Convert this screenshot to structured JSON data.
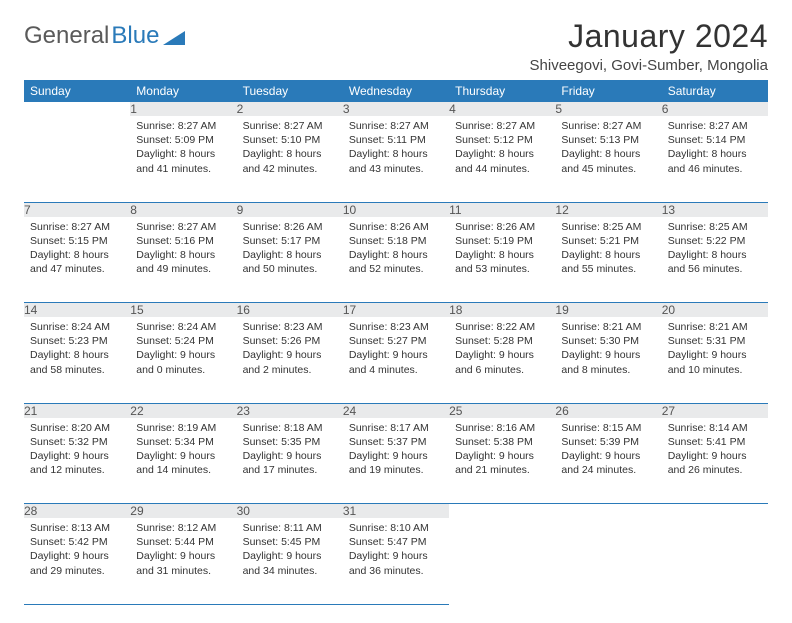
{
  "logo": {
    "text1": "General",
    "text2": "Blue"
  },
  "title": "January 2024",
  "location": "Shiveegovi, Govi-Sumber, Mongolia",
  "headers": [
    "Sunday",
    "Monday",
    "Tuesday",
    "Wednesday",
    "Thursday",
    "Friday",
    "Saturday"
  ],
  "header_bg": "#2a7ab9",
  "header_fg": "#ffffff",
  "daynum_bg": "#e9eaeb",
  "daynum_fg": "#555555",
  "border_color": "#2a7ab9",
  "weeks": [
    {
      "nums": [
        "",
        "1",
        "2",
        "3",
        "4",
        "5",
        "6"
      ],
      "cells": [
        null,
        {
          "sunrise": "Sunrise: 8:27 AM",
          "sunset": "Sunset: 5:09 PM",
          "day1": "Daylight: 8 hours",
          "day2": "and 41 minutes."
        },
        {
          "sunrise": "Sunrise: 8:27 AM",
          "sunset": "Sunset: 5:10 PM",
          "day1": "Daylight: 8 hours",
          "day2": "and 42 minutes."
        },
        {
          "sunrise": "Sunrise: 8:27 AM",
          "sunset": "Sunset: 5:11 PM",
          "day1": "Daylight: 8 hours",
          "day2": "and 43 minutes."
        },
        {
          "sunrise": "Sunrise: 8:27 AM",
          "sunset": "Sunset: 5:12 PM",
          "day1": "Daylight: 8 hours",
          "day2": "and 44 minutes."
        },
        {
          "sunrise": "Sunrise: 8:27 AM",
          "sunset": "Sunset: 5:13 PM",
          "day1": "Daylight: 8 hours",
          "day2": "and 45 minutes."
        },
        {
          "sunrise": "Sunrise: 8:27 AM",
          "sunset": "Sunset: 5:14 PM",
          "day1": "Daylight: 8 hours",
          "day2": "and 46 minutes."
        }
      ]
    },
    {
      "nums": [
        "7",
        "8",
        "9",
        "10",
        "11",
        "12",
        "13"
      ],
      "cells": [
        {
          "sunrise": "Sunrise: 8:27 AM",
          "sunset": "Sunset: 5:15 PM",
          "day1": "Daylight: 8 hours",
          "day2": "and 47 minutes."
        },
        {
          "sunrise": "Sunrise: 8:27 AM",
          "sunset": "Sunset: 5:16 PM",
          "day1": "Daylight: 8 hours",
          "day2": "and 49 minutes."
        },
        {
          "sunrise": "Sunrise: 8:26 AM",
          "sunset": "Sunset: 5:17 PM",
          "day1": "Daylight: 8 hours",
          "day2": "and 50 minutes."
        },
        {
          "sunrise": "Sunrise: 8:26 AM",
          "sunset": "Sunset: 5:18 PM",
          "day1": "Daylight: 8 hours",
          "day2": "and 52 minutes."
        },
        {
          "sunrise": "Sunrise: 8:26 AM",
          "sunset": "Sunset: 5:19 PM",
          "day1": "Daylight: 8 hours",
          "day2": "and 53 minutes."
        },
        {
          "sunrise": "Sunrise: 8:25 AM",
          "sunset": "Sunset: 5:21 PM",
          "day1": "Daylight: 8 hours",
          "day2": "and 55 minutes."
        },
        {
          "sunrise": "Sunrise: 8:25 AM",
          "sunset": "Sunset: 5:22 PM",
          "day1": "Daylight: 8 hours",
          "day2": "and 56 minutes."
        }
      ]
    },
    {
      "nums": [
        "14",
        "15",
        "16",
        "17",
        "18",
        "19",
        "20"
      ],
      "cells": [
        {
          "sunrise": "Sunrise: 8:24 AM",
          "sunset": "Sunset: 5:23 PM",
          "day1": "Daylight: 8 hours",
          "day2": "and 58 minutes."
        },
        {
          "sunrise": "Sunrise: 8:24 AM",
          "sunset": "Sunset: 5:24 PM",
          "day1": "Daylight: 9 hours",
          "day2": "and 0 minutes."
        },
        {
          "sunrise": "Sunrise: 8:23 AM",
          "sunset": "Sunset: 5:26 PM",
          "day1": "Daylight: 9 hours",
          "day2": "and 2 minutes."
        },
        {
          "sunrise": "Sunrise: 8:23 AM",
          "sunset": "Sunset: 5:27 PM",
          "day1": "Daylight: 9 hours",
          "day2": "and 4 minutes."
        },
        {
          "sunrise": "Sunrise: 8:22 AM",
          "sunset": "Sunset: 5:28 PM",
          "day1": "Daylight: 9 hours",
          "day2": "and 6 minutes."
        },
        {
          "sunrise": "Sunrise: 8:21 AM",
          "sunset": "Sunset: 5:30 PM",
          "day1": "Daylight: 9 hours",
          "day2": "and 8 minutes."
        },
        {
          "sunrise": "Sunrise: 8:21 AM",
          "sunset": "Sunset: 5:31 PM",
          "day1": "Daylight: 9 hours",
          "day2": "and 10 minutes."
        }
      ]
    },
    {
      "nums": [
        "21",
        "22",
        "23",
        "24",
        "25",
        "26",
        "27"
      ],
      "cells": [
        {
          "sunrise": "Sunrise: 8:20 AM",
          "sunset": "Sunset: 5:32 PM",
          "day1": "Daylight: 9 hours",
          "day2": "and 12 minutes."
        },
        {
          "sunrise": "Sunrise: 8:19 AM",
          "sunset": "Sunset: 5:34 PM",
          "day1": "Daylight: 9 hours",
          "day2": "and 14 minutes."
        },
        {
          "sunrise": "Sunrise: 8:18 AM",
          "sunset": "Sunset: 5:35 PM",
          "day1": "Daylight: 9 hours",
          "day2": "and 17 minutes."
        },
        {
          "sunrise": "Sunrise: 8:17 AM",
          "sunset": "Sunset: 5:37 PM",
          "day1": "Daylight: 9 hours",
          "day2": "and 19 minutes."
        },
        {
          "sunrise": "Sunrise: 8:16 AM",
          "sunset": "Sunset: 5:38 PM",
          "day1": "Daylight: 9 hours",
          "day2": "and 21 minutes."
        },
        {
          "sunrise": "Sunrise: 8:15 AM",
          "sunset": "Sunset: 5:39 PM",
          "day1": "Daylight: 9 hours",
          "day2": "and 24 minutes."
        },
        {
          "sunrise": "Sunrise: 8:14 AM",
          "sunset": "Sunset: 5:41 PM",
          "day1": "Daylight: 9 hours",
          "day2": "and 26 minutes."
        }
      ]
    },
    {
      "nums": [
        "28",
        "29",
        "30",
        "31",
        "",
        "",
        ""
      ],
      "cells": [
        {
          "sunrise": "Sunrise: 8:13 AM",
          "sunset": "Sunset: 5:42 PM",
          "day1": "Daylight: 9 hours",
          "day2": "and 29 minutes."
        },
        {
          "sunrise": "Sunrise: 8:12 AM",
          "sunset": "Sunset: 5:44 PM",
          "day1": "Daylight: 9 hours",
          "day2": "and 31 minutes."
        },
        {
          "sunrise": "Sunrise: 8:11 AM",
          "sunset": "Sunset: 5:45 PM",
          "day1": "Daylight: 9 hours",
          "day2": "and 34 minutes."
        },
        {
          "sunrise": "Sunrise: 8:10 AM",
          "sunset": "Sunset: 5:47 PM",
          "day1": "Daylight: 9 hours",
          "day2": "and 36 minutes."
        },
        null,
        null,
        null
      ]
    }
  ]
}
